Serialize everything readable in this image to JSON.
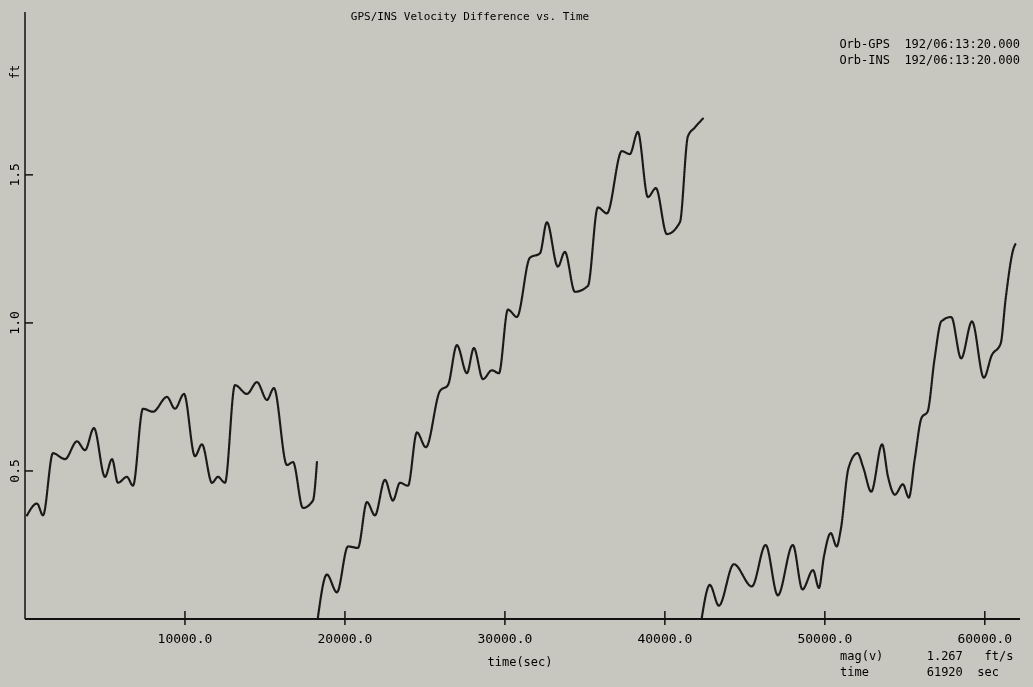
{
  "chart_data": {
    "type": "line",
    "title": "GPS/INS Velocity Difference vs. Time",
    "xlabel": "time(sec)",
    "ylabel": "ft",
    "annotations": [
      "Orb-GPS  192/06:13:20.000",
      "Orb-INS  192/06:13:20.000",
      "mag(v)      1.267   ft/s",
      "time        61920  sec"
    ],
    "xlim": [
      0,
      62200
    ],
    "ylim": [
      0,
      2.05
    ],
    "xticks": [
      {
        "value": 10000,
        "label": "10000.0"
      },
      {
        "value": 20000,
        "label": "20000.0"
      },
      {
        "value": 30000,
        "label": "30000.0"
      },
      {
        "value": 40000,
        "label": "40000.0"
      },
      {
        "value": 50000,
        "label": "50000.0"
      },
      {
        "value": 60000,
        "label": "60000.0"
      }
    ],
    "yticks": [
      {
        "value": 0.5,
        "label": "0.5"
      },
      {
        "value": 1,
        "label": "1.0"
      },
      {
        "value": 1.5,
        "label": "1.5"
      }
    ],
    "grid": false,
    "marker": "none",
    "line_style": "dotted",
    "series": [
      {
        "color": "#1a1a1a",
        "x": [
          125,
          750,
          1125,
          1750,
          2500,
          3250,
          3750,
          4310,
          5000,
          5440,
          5810,
          6370,
          6750,
          7375,
          8000,
          8875,
          9375,
          9940,
          10625,
          11060,
          11690,
          12060,
          12500,
          13125,
          13875,
          14500,
          15125,
          15560,
          16375,
          16750,
          17375,
          18000,
          18250,
          18280,
          18310,
          18870,
          19500,
          20190,
          20810,
          21375,
          21875,
          22500,
          23000,
          23440,
          23940,
          24500,
          25060,
          25940,
          26440,
          27000,
          27625,
          28060,
          28625,
          29190,
          29625,
          30190,
          30750,
          31560,
          32190,
          32625,
          33310,
          33750,
          34375,
          35190,
          35810,
          36375,
          37310,
          37810,
          38310,
          38940,
          39440,
          40125,
          40940,
          41440,
          41875,
          42375,
          42340,
          42310,
          42810,
          43375,
          44310,
          45440,
          46300,
          47060,
          48000,
          48600,
          49260,
          49630,
          49940,
          50370,
          50740,
          50990,
          51480,
          52040,
          52410,
          52900,
          53580,
          53950,
          54380,
          54880,
          55250,
          55620,
          56050,
          56420,
          56850,
          57280,
          57900,
          58520,
          59200,
          59940,
          60430,
          60990,
          61300,
          61790,
          61920
        ],
        "values": [
          0.35,
          0.39,
          0.35,
          0.56,
          0.54,
          0.6,
          0.57,
          0.645,
          0.48,
          0.54,
          0.46,
          0.48,
          0.45,
          0.71,
          0.7,
          0.75,
          0.71,
          0.76,
          0.55,
          0.59,
          0.46,
          0.48,
          0.46,
          0.79,
          0.76,
          0.8,
          0.74,
          0.78,
          0.52,
          0.53,
          0.375,
          0.4,
          0.53,
          null,
          0.005,
          0.15,
          0.09,
          0.245,
          0.24,
          0.395,
          0.35,
          0.47,
          0.4,
          0.46,
          0.45,
          0.63,
          0.58,
          0.77,
          0.79,
          0.925,
          0.83,
          0.915,
          0.81,
          0.84,
          0.83,
          1.045,
          1.02,
          1.22,
          1.235,
          1.34,
          1.19,
          1.24,
          1.105,
          1.125,
          1.39,
          1.37,
          1.58,
          1.57,
          1.645,
          1.425,
          1.455,
          1.3,
          1.34,
          1.63,
          1.66,
          1.69,
          null,
          0.005,
          0.115,
          0.045,
          0.185,
          0.11,
          0.25,
          0.08,
          0.25,
          0.1,
          0.165,
          0.105,
          0.21,
          0.29,
          0.245,
          0.3,
          0.51,
          0.56,
          0.51,
          0.43,
          0.59,
          0.48,
          0.42,
          0.455,
          0.41,
          0.54,
          0.68,
          0.7,
          0.875,
          1.005,
          1.02,
          0.88,
          1.005,
          0.815,
          0.89,
          0.93,
          1.08,
          1.25,
          1.267
        ]
      }
    ]
  }
}
